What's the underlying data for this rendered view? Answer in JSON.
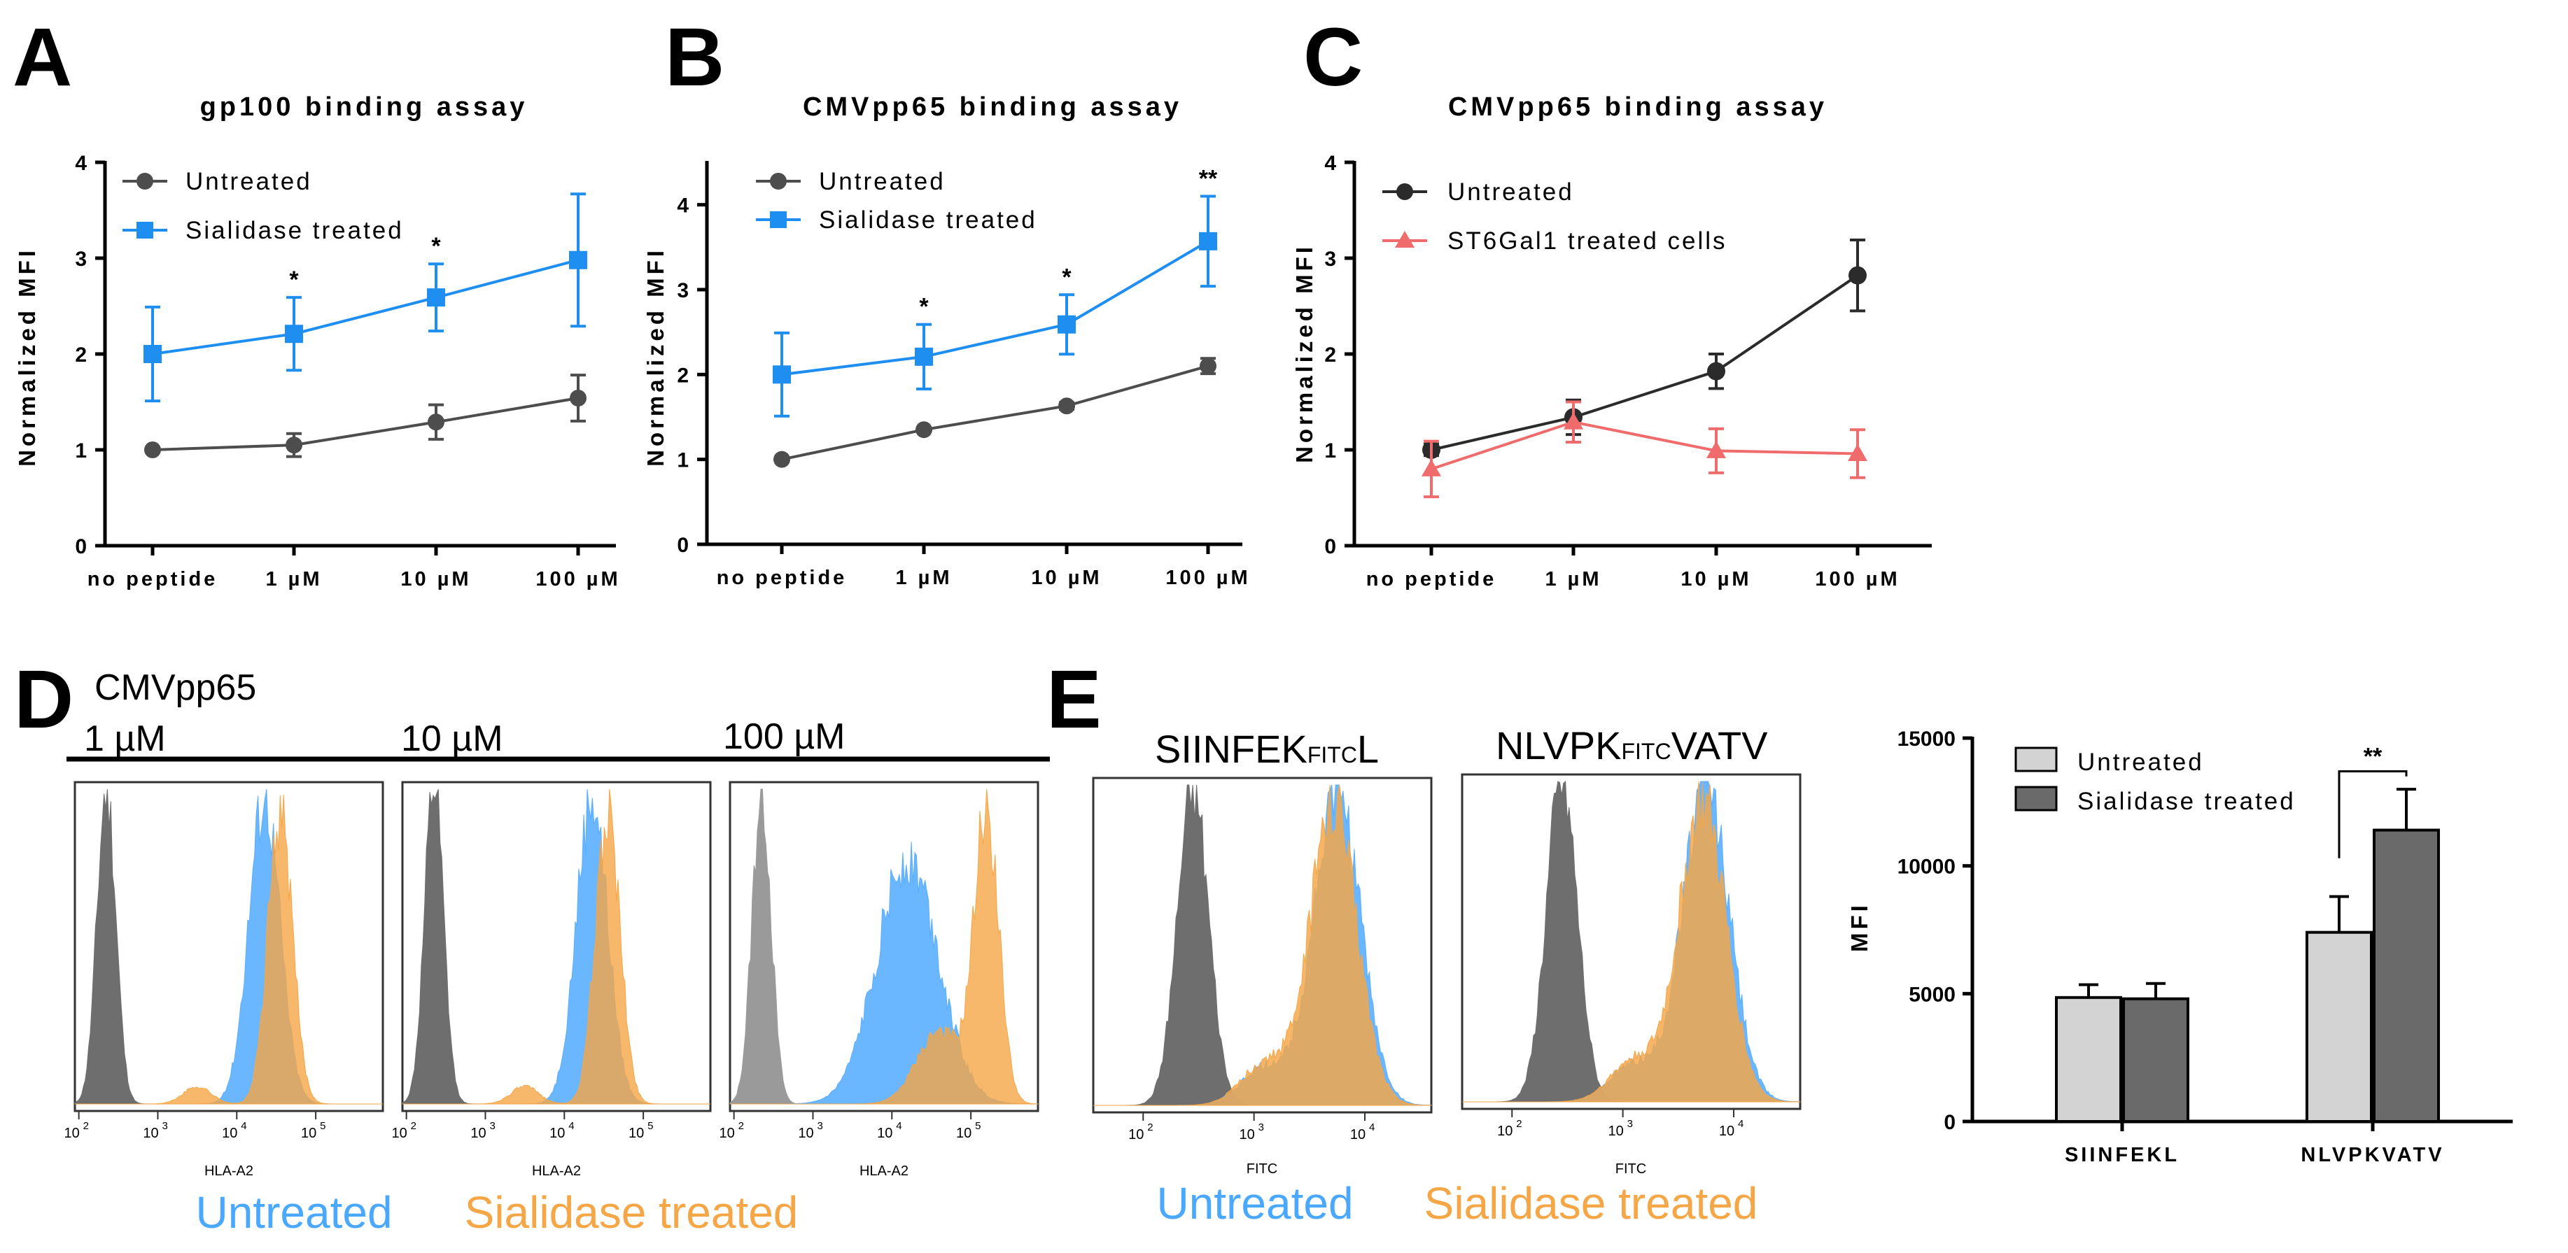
{
  "colors": {
    "untreated_line": "#4d4d4d",
    "untreated_dark": "#2b2b2b",
    "sialidase_blue": "#1f8ef1",
    "st6_red": "#f06b6b",
    "hist_grey": "#6e6e6e",
    "hist_blue": "#5aaeff",
    "hist_orange": "#f5a646",
    "bar_light": "#d3d3d3",
    "bar_dark": "#6a6a6a"
  },
  "panels": {
    "A": "A",
    "B": "B",
    "C": "C",
    "D": "D",
    "E": "E"
  },
  "chart_data": [
    {
      "id": "A",
      "type": "line",
      "title": "gp100 binding assay",
      "ylabel": "Normalized MFI",
      "categories": [
        "no peptide",
        "1 µM",
        "10 µM",
        "100 µM"
      ],
      "ylim": [
        0,
        4
      ],
      "yticks": [
        "0",
        "1",
        "2",
        "3",
        "4"
      ],
      "series": [
        {
          "name": "Untreated",
          "marker": "circle",
          "values": [
            1.0,
            1.05,
            1.29,
            1.54
          ],
          "errors": [
            0.02,
            0.12,
            0.18,
            0.24
          ]
        },
        {
          "name": "Sialidase treated",
          "marker": "square",
          "values": [
            2.0,
            2.21,
            2.59,
            2.98
          ],
          "errors": [
            0.49,
            0.38,
            0.35,
            0.69
          ]
        }
      ],
      "significance": [
        "",
        "*",
        "*",
        ""
      ]
    },
    {
      "id": "B",
      "type": "line",
      "title": "CMVpp65 binding assay",
      "ylabel": "Normalized MFI",
      "categories": [
        "no peptide",
        "1 µM",
        "10 µM",
        "100 µM"
      ],
      "ylim": [
        0,
        4.5
      ],
      "yticks": [
        "0",
        "1",
        "2",
        "3",
        "4"
      ],
      "series": [
        {
          "name": "Untreated",
          "marker": "circle",
          "values": [
            1.0,
            1.35,
            1.63,
            2.1
          ],
          "errors": [
            0.02,
            0.03,
            0.04,
            0.09
          ]
        },
        {
          "name": "Sialidase treated",
          "marker": "square",
          "values": [
            2.0,
            2.21,
            2.59,
            3.57
          ],
          "errors": [
            0.49,
            0.38,
            0.35,
            0.53
          ]
        }
      ],
      "significance": [
        "",
        "*",
        "*",
        "**"
      ]
    },
    {
      "id": "C",
      "type": "line",
      "title": "CMVpp65 binding assay",
      "ylabel": "Normalized MFI",
      "categories": [
        "no peptide",
        "1 µM",
        "10 µM",
        "100 µM"
      ],
      "ylim": [
        0,
        4
      ],
      "yticks": [
        "0",
        "1",
        "2",
        "3",
        "4"
      ],
      "series": [
        {
          "name": "Untreated",
          "marker": "circle",
          "values": [
            1.0,
            1.34,
            1.82,
            2.82
          ],
          "errors": [
            0.06,
            0.18,
            0.18,
            0.37
          ]
        },
        {
          "name": "ST6Gal1 treated cells",
          "marker": "triangle",
          "values": [
            0.8,
            1.29,
            0.99,
            0.96
          ],
          "errors": [
            0.29,
            0.21,
            0.23,
            0.25
          ]
        }
      ],
      "significance": [
        "",
        "",
        "",
        ""
      ]
    },
    {
      "id": "E-bar",
      "type": "bar",
      "categories": [
        "SIINFEKL",
        "NLVPKVATV"
      ],
      "ylabel": "MFI",
      "ylim": [
        0,
        15000
      ],
      "yticks": [
        "0",
        "5000",
        "10000",
        "15000"
      ],
      "series": [
        {
          "name": "Untreated",
          "values": [
            4850,
            7400
          ],
          "errors": [
            500,
            1400
          ]
        },
        {
          "name": "Sialidase treated",
          "values": [
            4800,
            11400
          ],
          "errors": [
            600,
            1600
          ]
        }
      ],
      "significance": [
        "",
        "**"
      ]
    }
  ],
  "flow_D": {
    "title": "CMVpp65",
    "conditions": [
      "1 µM",
      "10 µM",
      "100 µM"
    ],
    "xlabel": "HLA-A2",
    "xticks": [
      "10",
      "10",
      "10",
      "10"
    ],
    "xtick_exps": [
      "2",
      "3",
      "4",
      "5"
    ],
    "legend_untreated": "Untreated",
    "legend_sialidase": "Sialidase treated",
    "grey_peak_log": [
      2.35,
      2.35,
      2.35
    ],
    "blue_peak_log": [
      4.35,
      4.35,
      4.2
    ],
    "orange_peak_log": [
      4.55,
      4.55,
      5.2
    ]
  },
  "flow_E": {
    "panels": [
      {
        "title_main": "SIINFEK",
        "title_sub": "FITC",
        "title_end": "L"
      },
      {
        "title_main": "NLVPK",
        "title_sub": "FITC",
        "title_end": "VATV"
      }
    ],
    "xlabel": "FITC",
    "xticks": [
      "10",
      "10",
      "10"
    ],
    "xtick_exps": [
      "2",
      "3",
      "4"
    ],
    "legend_untreated": "Untreated",
    "legend_sialidase": "Sialidase treated"
  }
}
